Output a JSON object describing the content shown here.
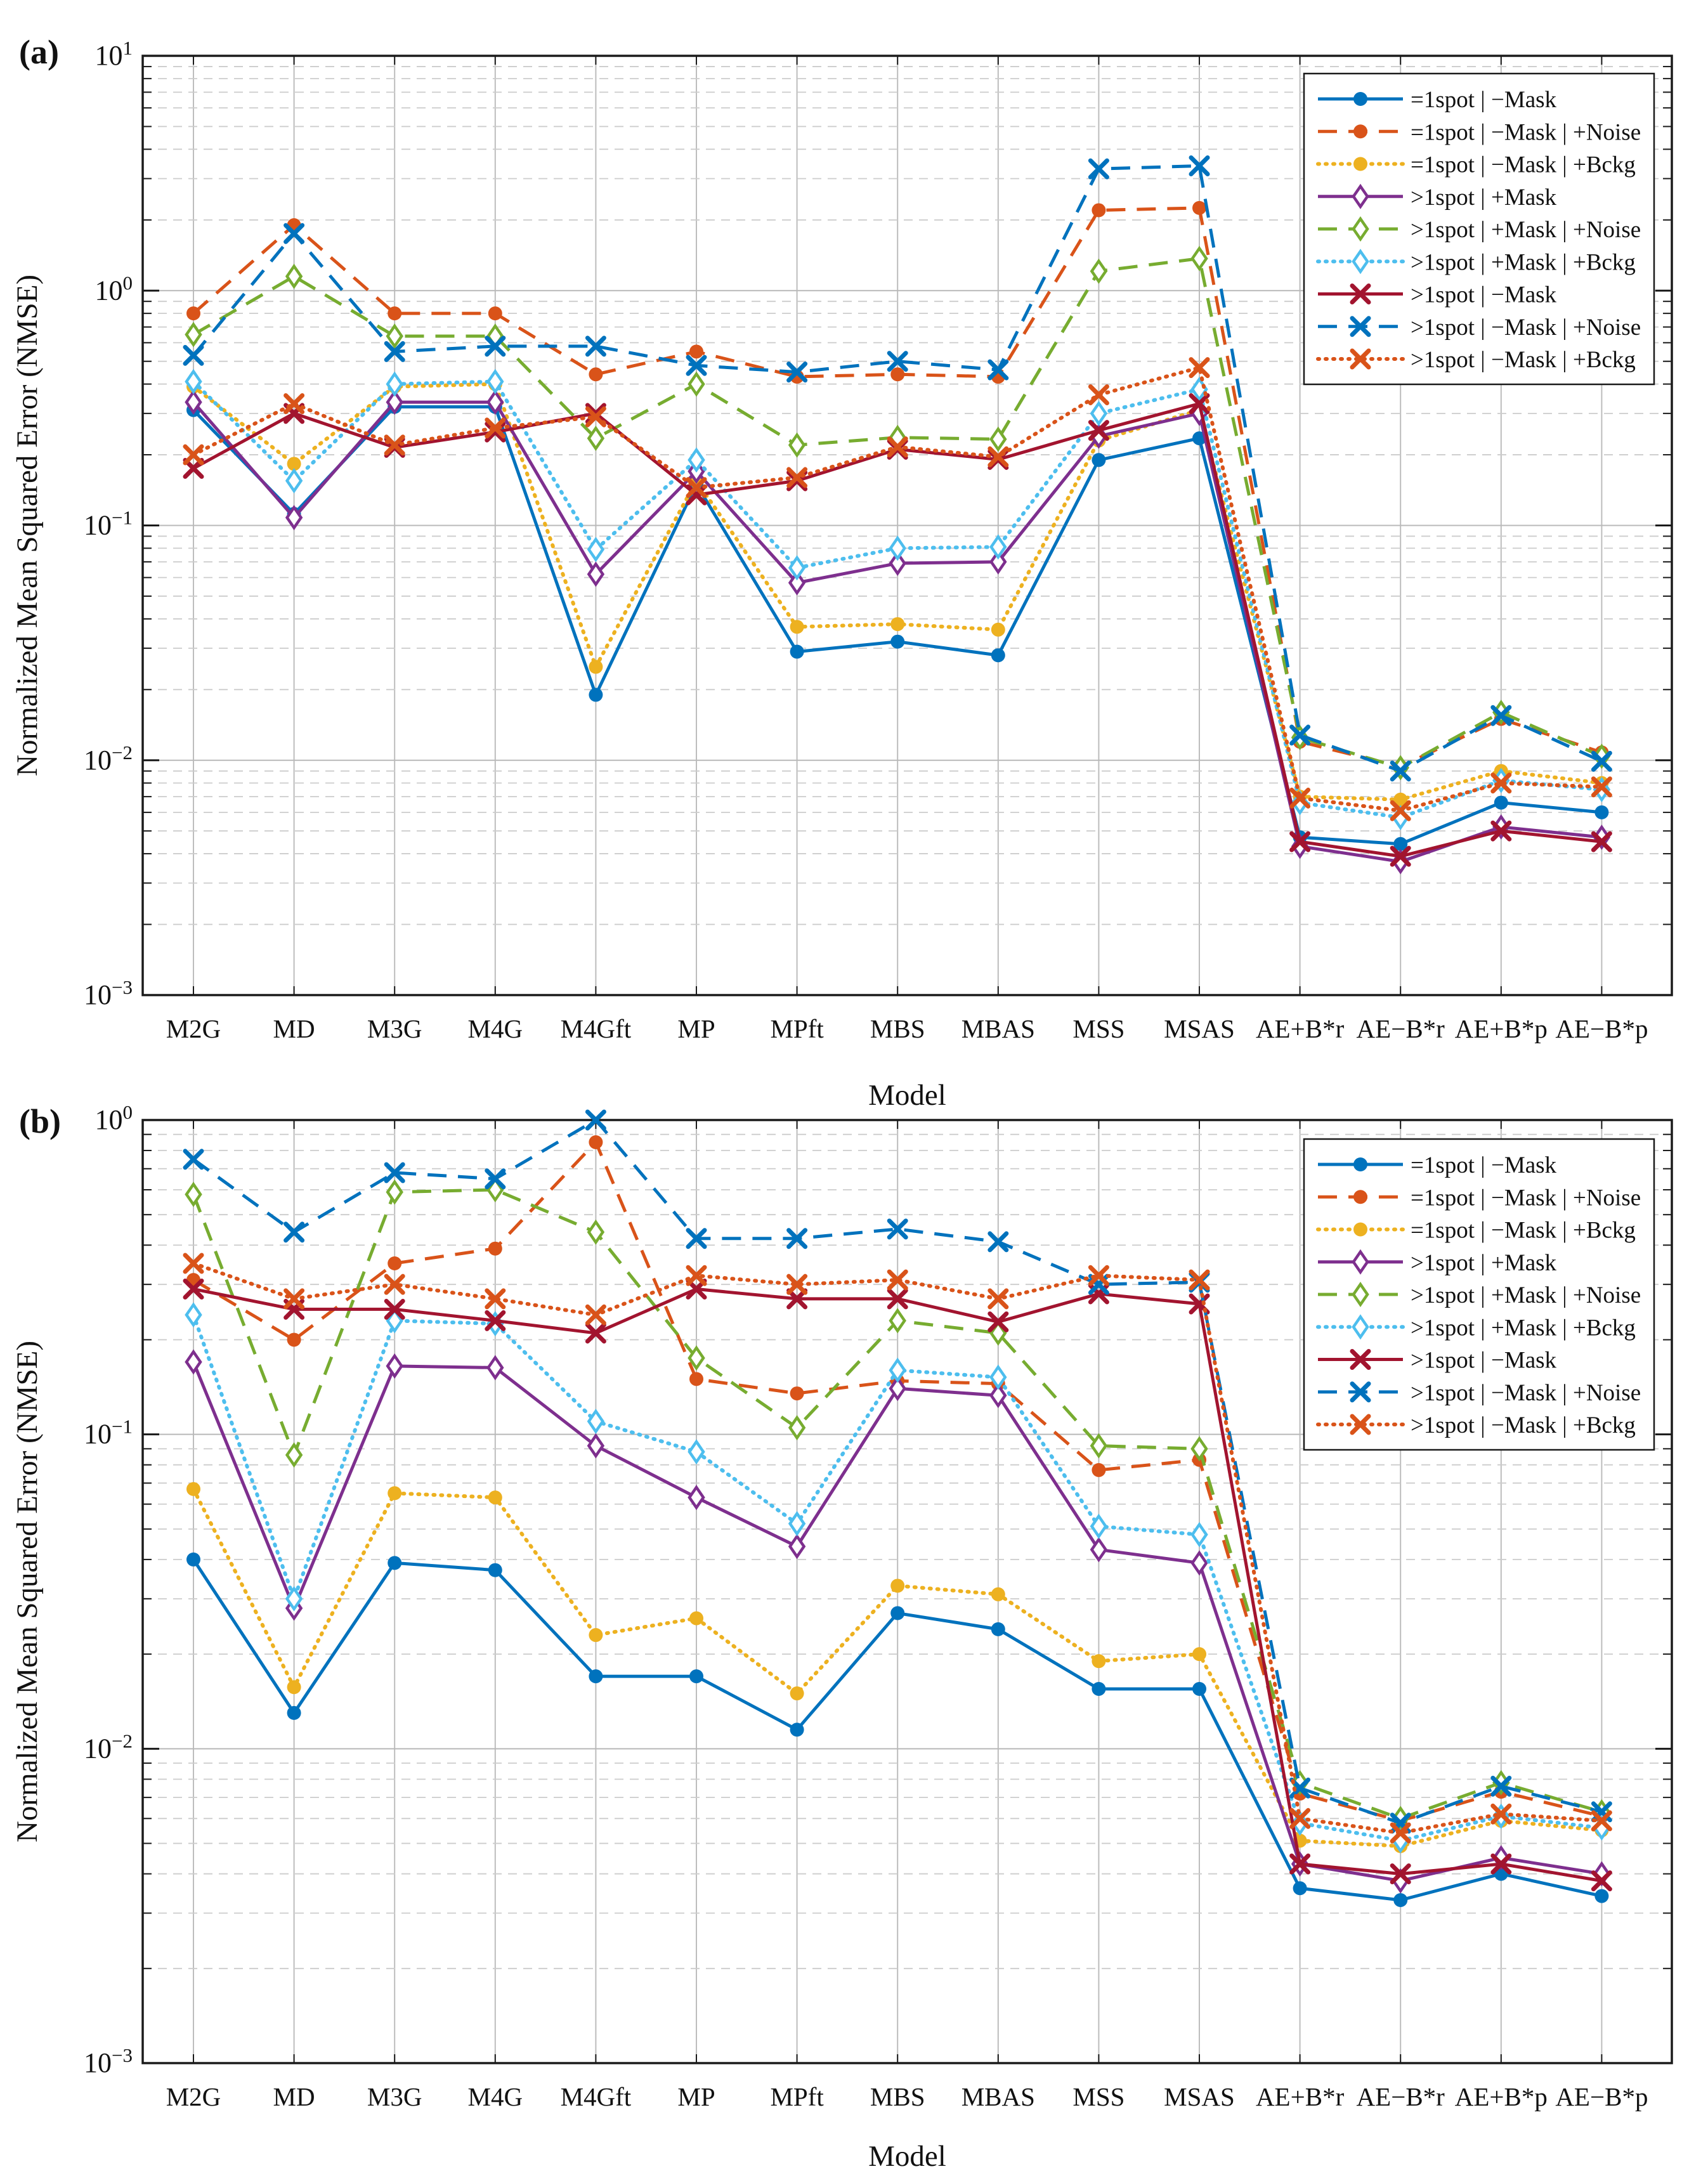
{
  "figure": {
    "panel_tags": [
      "(a)",
      "(b)"
    ],
    "xlabel": "Model",
    "ylabel": "Normalized Mean Squared Error (NMSE)",
    "background": "#ffffff",
    "axis_color": "#1a1a1a",
    "major_grid_color": "#b9b9b9",
    "minor_grid_color": "#cccccc"
  },
  "chart_data": [
    {
      "type": "line",
      "panel": "(a)",
      "title": "",
      "xlabel": "Model",
      "ylabel": "Normalized Mean Squared Error (NMSE)",
      "y_scale": "log",
      "ylim_exp": [
        -3,
        1
      ],
      "y_tick_exponents": [
        "1",
        "0",
        "−1",
        "−2",
        "−3"
      ],
      "grid": "on",
      "legend_position": "top-right",
      "categories": [
        "M2G",
        "MD",
        "M3G",
        "M4G",
        "M4Gft",
        "MP",
        "MPft",
        "MBS",
        "MBAS",
        "MSS",
        "MSAS",
        "AE+B*r",
        "AE−B*r",
        "AE+B*p",
        "AE−B*p"
      ],
      "series": [
        {
          "name": "=1spot | −Mask",
          "color": "#0072BD",
          "linestyle": "solid",
          "marker": "circle",
          "values": [
            0.31,
            0.112,
            0.32,
            0.32,
            0.019,
            0.15,
            0.029,
            0.032,
            0.028,
            0.19,
            0.235,
            0.0047,
            0.0044,
            0.0066,
            0.006
          ]
        },
        {
          "name": "=1spot | −Mask | +Noise",
          "color": "#D95319",
          "linestyle": "dashed",
          "marker": "circle",
          "values": [
            0.8,
            1.9,
            0.8,
            0.8,
            0.44,
            0.55,
            0.43,
            0.44,
            0.43,
            2.2,
            2.25,
            0.012,
            0.0094,
            0.015,
            0.0108
          ]
        },
        {
          "name": "=1spot | −Mask | +Bckg",
          "color": "#EDB120",
          "linestyle": "dotted",
          "marker": "circle",
          "values": [
            0.39,
            0.183,
            0.39,
            0.4,
            0.025,
            0.155,
            0.037,
            0.038,
            0.036,
            0.23,
            0.31,
            0.007,
            0.0068,
            0.009,
            0.008
          ]
        },
        {
          "name": ">1spot | +Mask",
          "color": "#7E2F8E",
          "linestyle": "solid",
          "marker": "diamond",
          "values": [
            0.335,
            0.108,
            0.335,
            0.335,
            0.062,
            0.17,
            0.057,
            0.069,
            0.07,
            0.24,
            0.3,
            0.0043,
            0.0037,
            0.0052,
            0.0047
          ]
        },
        {
          "name": ">1spot | +Mask | +Noise",
          "color": "#77AC30",
          "linestyle": "dashed",
          "marker": "diamond",
          "values": [
            0.65,
            1.15,
            0.64,
            0.64,
            0.235,
            0.4,
            0.22,
            0.237,
            0.233,
            1.21,
            1.37,
            0.0125,
            0.0093,
            0.016,
            0.0104
          ]
        },
        {
          "name": ">1spot | +Mask | +Bckg",
          "color": "#4DBEEE",
          "linestyle": "dotted",
          "marker": "diamond",
          "values": [
            0.41,
            0.155,
            0.4,
            0.41,
            0.079,
            0.19,
            0.066,
            0.08,
            0.081,
            0.3,
            0.38,
            0.0066,
            0.0057,
            0.0082,
            0.0075
          ]
        },
        {
          "name": ">1spot | −Mask",
          "color": "#A2142F",
          "linestyle": "solid",
          "marker": "x",
          "values": [
            0.175,
            0.3,
            0.215,
            0.25,
            0.3,
            0.135,
            0.155,
            0.211,
            0.191,
            0.254,
            0.33,
            0.0045,
            0.0039,
            0.005,
            0.0045
          ]
        },
        {
          "name": ">1spot | −Mask | +Noise",
          "color": "#0072BD",
          "linestyle": "dashed",
          "marker": "x",
          "values": [
            0.53,
            1.75,
            0.55,
            0.58,
            0.58,
            0.48,
            0.45,
            0.5,
            0.46,
            3.3,
            3.4,
            0.0128,
            0.009,
            0.0155,
            0.0099
          ]
        },
        {
          "name": ">1spot | −Mask | +Bckg",
          "color": "#D95319",
          "linestyle": "dotted",
          "marker": "x",
          "values": [
            0.2,
            0.33,
            0.22,
            0.26,
            0.29,
            0.145,
            0.16,
            0.216,
            0.196,
            0.36,
            0.47,
            0.0069,
            0.0061,
            0.008,
            0.0077
          ]
        }
      ]
    },
    {
      "type": "line",
      "panel": "(b)",
      "title": "",
      "xlabel": "Model",
      "ylabel": "Normalized Mean Squared Error (NMSE)",
      "y_scale": "log",
      "ylim_exp": [
        -3,
        0
      ],
      "y_tick_exponents": [
        "0",
        "−1",
        "−2",
        "−3"
      ],
      "grid": "on",
      "legend_position": "top-right",
      "categories": [
        "M2G",
        "MD",
        "M3G",
        "M4G",
        "M4Gft",
        "MP",
        "MPft",
        "MBS",
        "MBAS",
        "MSS",
        "MSAS",
        "AE+B*r",
        "AE−B*r",
        "AE+B*p",
        "AE−B*p"
      ],
      "series": [
        {
          "name": "=1spot | −Mask",
          "color": "#0072BD",
          "linestyle": "solid",
          "marker": "circle",
          "values": [
            0.04,
            0.013,
            0.039,
            0.037,
            0.017,
            0.017,
            0.0115,
            0.027,
            0.024,
            0.0155,
            0.0155,
            0.0036,
            0.0033,
            0.004,
            0.0034
          ]
        },
        {
          "name": "=1spot | −Mask | +Noise",
          "color": "#D95319",
          "linestyle": "dashed",
          "marker": "circle",
          "values": [
            0.31,
            0.2,
            0.35,
            0.39,
            0.85,
            0.15,
            0.135,
            0.148,
            0.145,
            0.077,
            0.083,
            0.0072,
            0.0059,
            0.0073,
            0.0061
          ]
        },
        {
          "name": "=1spot | −Mask | +Bckg",
          "color": "#EDB120",
          "linestyle": "dotted",
          "marker": "circle",
          "values": [
            0.067,
            0.0157,
            0.065,
            0.063,
            0.023,
            0.026,
            0.015,
            0.033,
            0.031,
            0.019,
            0.02,
            0.0051,
            0.0049,
            0.0059,
            0.0055
          ]
        },
        {
          "name": ">1spot | +Mask",
          "color": "#7E2F8E",
          "linestyle": "solid",
          "marker": "diamond",
          "values": [
            0.17,
            0.028,
            0.165,
            0.163,
            0.092,
            0.063,
            0.044,
            0.14,
            0.133,
            0.043,
            0.039,
            0.0043,
            0.0038,
            0.0045,
            0.004
          ]
        },
        {
          "name": ">1spot | +Mask | +Noise",
          "color": "#77AC30",
          "linestyle": "dashed",
          "marker": "diamond",
          "values": [
            0.58,
            0.086,
            0.59,
            0.6,
            0.44,
            0.175,
            0.105,
            0.23,
            0.21,
            0.092,
            0.09,
            0.0078,
            0.006,
            0.0078,
            0.0063
          ]
        },
        {
          "name": ">1spot | +Mask | +Bckg",
          "color": "#4DBEEE",
          "linestyle": "dotted",
          "marker": "diamond",
          "values": [
            0.24,
            0.03,
            0.23,
            0.225,
            0.11,
            0.088,
            0.052,
            0.16,
            0.152,
            0.051,
            0.048,
            0.0058,
            0.0051,
            0.0061,
            0.0056
          ]
        },
        {
          "name": ">1spot | −Mask",
          "color": "#A2142F",
          "linestyle": "solid",
          "marker": "x",
          "values": [
            0.29,
            0.25,
            0.25,
            0.23,
            0.21,
            0.29,
            0.27,
            0.27,
            0.228,
            0.28,
            0.26,
            0.0043,
            0.004,
            0.0043,
            0.0038
          ]
        },
        {
          "name": ">1spot | −Mask | +Noise",
          "color": "#0072BD",
          "linestyle": "dashed",
          "marker": "x",
          "values": [
            0.75,
            0.44,
            0.68,
            0.65,
            1.0,
            0.42,
            0.42,
            0.45,
            0.41,
            0.3,
            0.305,
            0.0075,
            0.0058,
            0.0076,
            0.0063
          ]
        },
        {
          "name": ">1spot | −Mask | +Bckg",
          "color": "#D95319",
          "linestyle": "dotted",
          "marker": "x",
          "values": [
            0.35,
            0.27,
            0.3,
            0.27,
            0.24,
            0.32,
            0.3,
            0.31,
            0.27,
            0.32,
            0.31,
            0.006,
            0.0054,
            0.0062,
            0.0059
          ]
        }
      ]
    }
  ]
}
